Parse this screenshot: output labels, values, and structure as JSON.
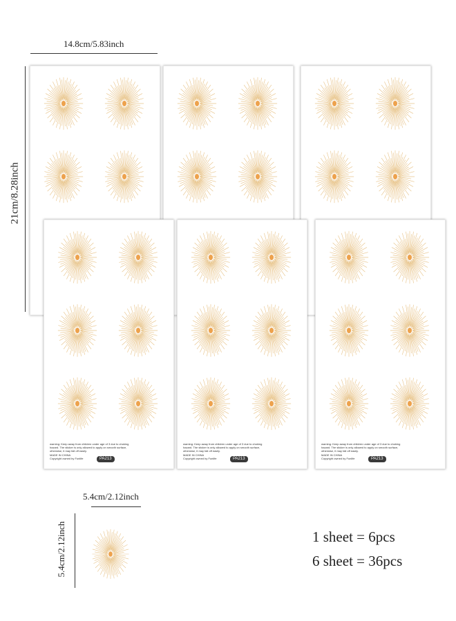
{
  "dimensions": {
    "sheet_width": "14.8cm/5.83inch",
    "sheet_height": "21cm/8.28inch",
    "sticker_width": "5.4cm/2.12inch",
    "sticker_height": "5.4cm/2.12inch"
  },
  "sheet": {
    "warning_line1": "warning: Keep away from children under age of 3 due to choking",
    "warning_line2": "hazard. The sticker is only allowed to apply on smooth surface,",
    "warning_line3": "otherwise, it may fall off easily.",
    "made_in": "MADE IN CHINA",
    "copyright": "Copyright owned by Funlife",
    "code": "PA213"
  },
  "summary": {
    "line1": "1 sheet = 6pcs",
    "line2": "6 sheet = 36pcs"
  },
  "colors": {
    "ray": "#e8c48a",
    "center": "#eda24d"
  }
}
